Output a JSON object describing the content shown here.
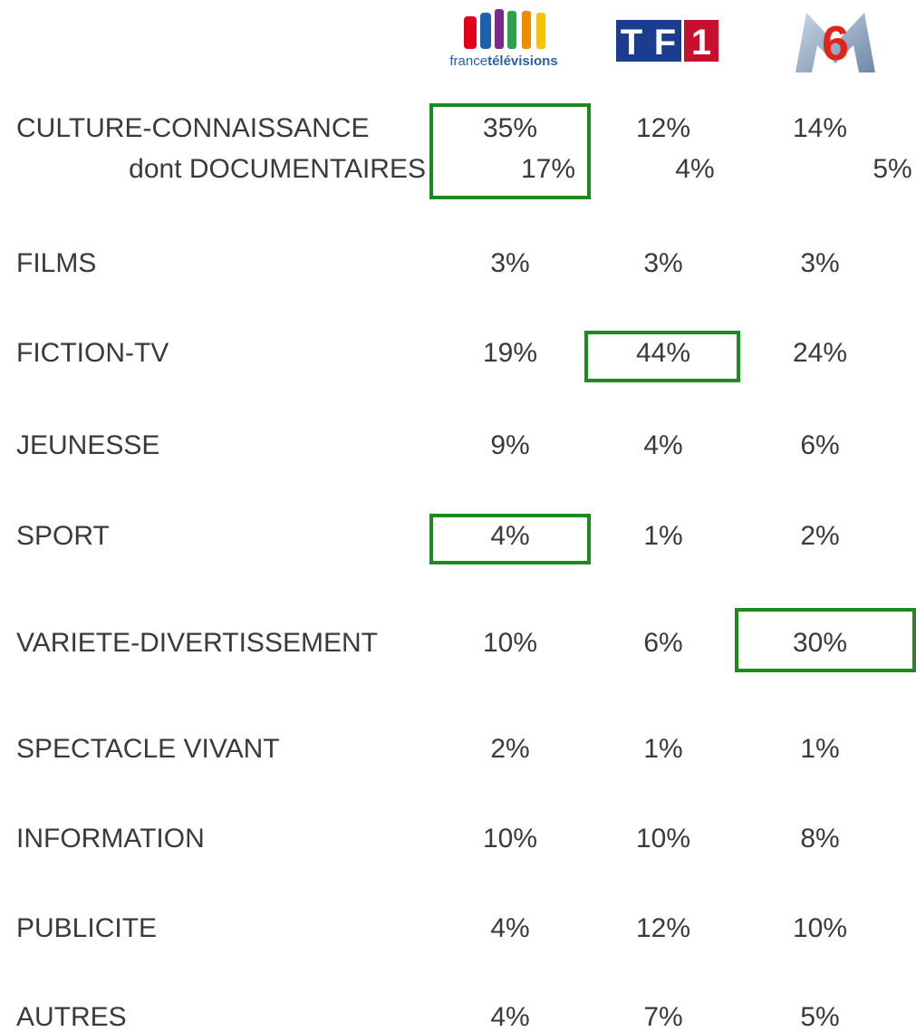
{
  "header": {
    "francetv": [
      "france",
      "télévisions"
    ],
    "tf1": "TF1",
    "m6": "6"
  },
  "table": {
    "rows": [
      {
        "label": "CULTURE-CONNAISSANCE",
        "values": [
          "35%",
          "12%",
          "14%"
        ]
      },
      {
        "label": "dont DOCUMENTAIRES",
        "values": [
          "17%",
          "4%",
          "5%"
        ]
      },
      {
        "label": "FILMS",
        "values": [
          "3%",
          "3%",
          "3%"
        ]
      },
      {
        "label": "FICTION-TV",
        "values": [
          "19%",
          "44%",
          "24%"
        ]
      },
      {
        "label": "JEUNESSE",
        "values": [
          "9%",
          "4%",
          "6%"
        ]
      },
      {
        "label": "SPORT",
        "values": [
          "4%",
          "1%",
          "2%"
        ]
      },
      {
        "label": "VARIETE-DIVERTISSEMENT",
        "values": [
          "10%",
          "6%",
          "30%"
        ]
      },
      {
        "label": "SPECTACLE VIVANT",
        "values": [
          "2%",
          "1%",
          "1%"
        ]
      },
      {
        "label": "INFORMATION",
        "values": [
          "10%",
          "10%",
          "8%"
        ]
      },
      {
        "label": "PUBLICITE",
        "values": [
          "4%",
          "12%",
          "10%"
        ]
      },
      {
        "label": "AUTRES",
        "values": [
          "4%",
          "7%",
          "5%"
        ]
      }
    ]
  }
}
